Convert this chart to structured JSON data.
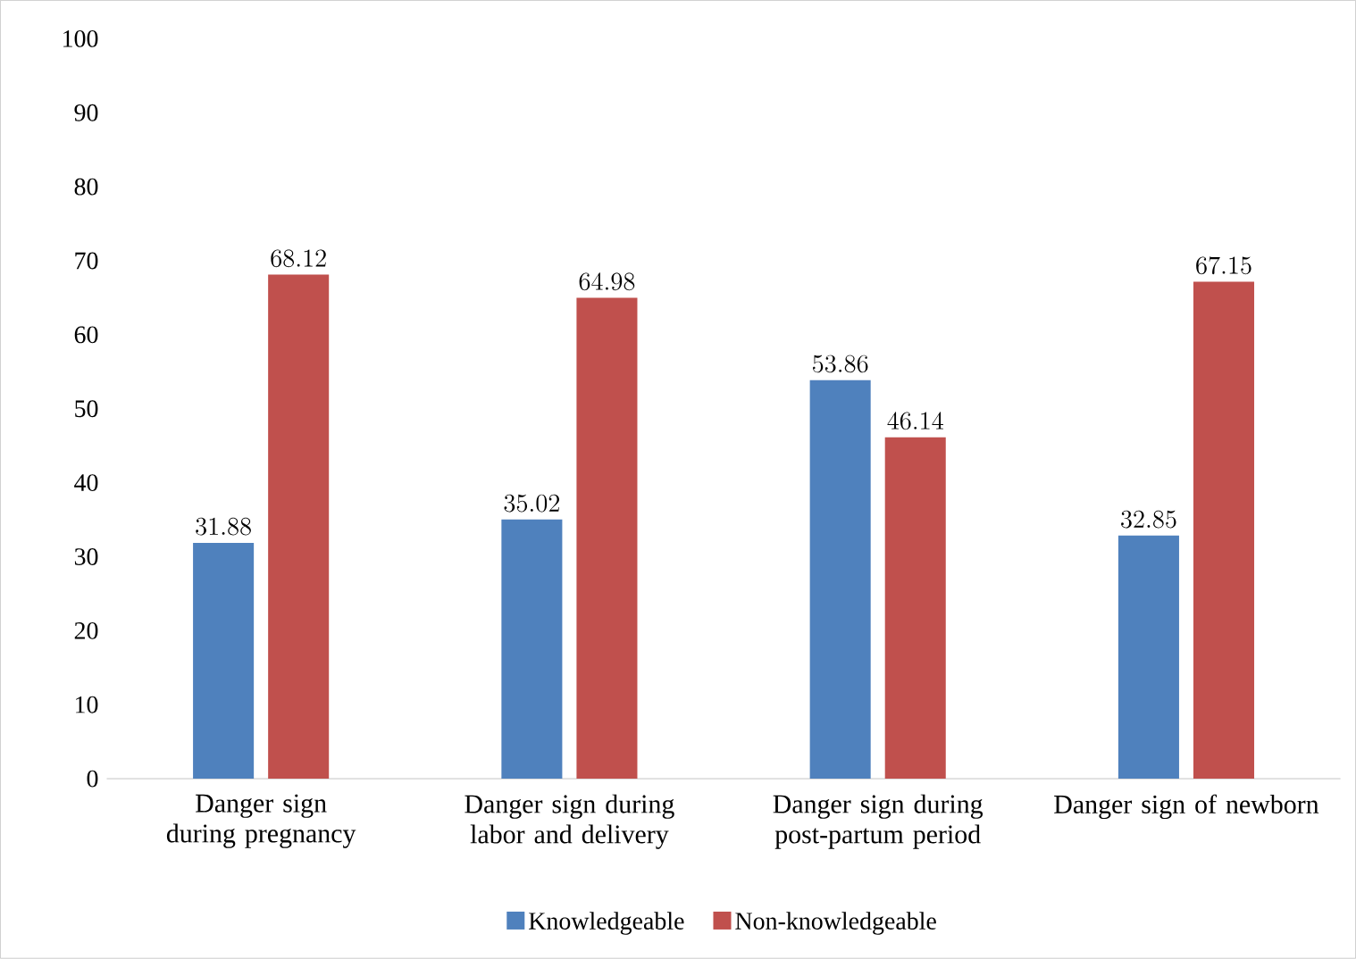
{
  "chart_data": {
    "type": "bar",
    "categories": [
      "Danger sign during pregnancy",
      "Danger sign during labor and delivery",
      "Danger sign during post-partum period",
      "Danger sign of newborn"
    ],
    "series": [
      {
        "name": "Knowledgeable",
        "color": "#4f81bd",
        "values": [
          31.88,
          35.02,
          53.86,
          32.85
        ]
      },
      {
        "name": "Non-knowledgeable",
        "color": "#c0504d",
        "values": [
          68.12,
          64.98,
          46.14,
          67.15
        ]
      }
    ],
    "ylim": [
      0,
      100
    ],
    "yticks": [
      0,
      10,
      20,
      30,
      40,
      50,
      60,
      70,
      80,
      90,
      100
    ],
    "data_labels": true,
    "legend": "bottom",
    "grid": false
  }
}
